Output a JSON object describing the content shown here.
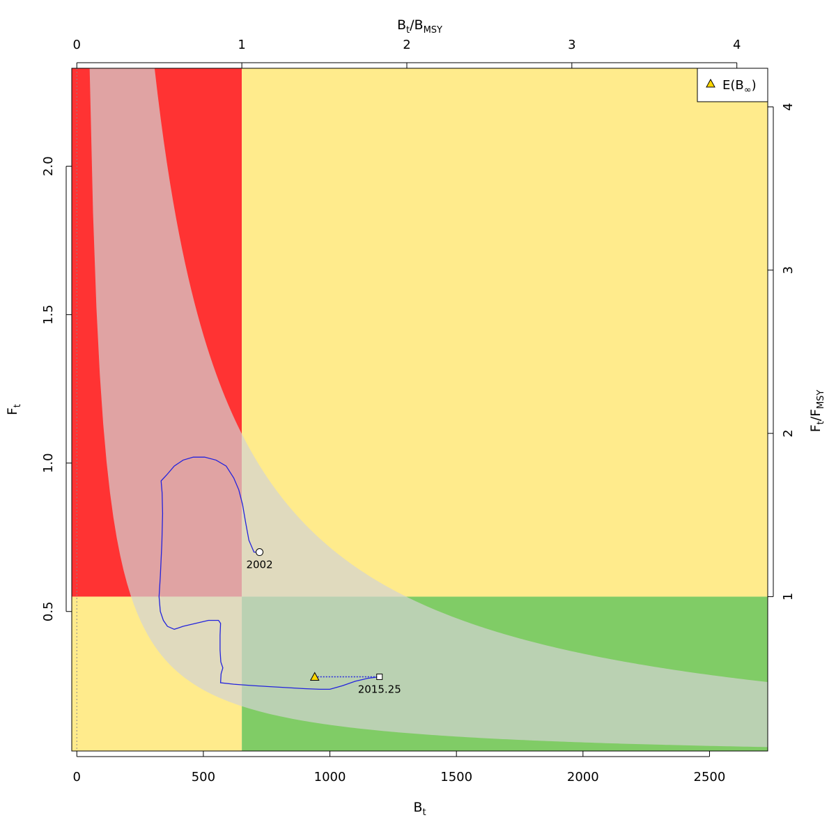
{
  "chart_data": {
    "type": "scatter",
    "title": "",
    "x_axis": {
      "label_main": "B",
      "label_sub": "t",
      "lim": [
        -20,
        2730
      ],
      "ticks": [
        0,
        500,
        1000,
        1500,
        2000,
        2500
      ],
      "tick_labels": [
        "0",
        "500",
        "1000",
        "1500",
        "2000",
        "2500"
      ]
    },
    "y_axis": {
      "label_main": "F",
      "label_sub": "t",
      "lim": [
        0.03,
        2.33
      ],
      "ticks": [
        0.5,
        1.0,
        1.5,
        2.0
      ],
      "tick_labels": [
        "0.5",
        "1.0",
        "1.5",
        "2.0"
      ]
    },
    "top_axis": {
      "label_main": "B",
      "label_sub": "t",
      "label_slash": "/",
      "label_main2": "B",
      "label_sub2": "MSY",
      "bmsy": 652,
      "ticks": [
        0,
        1,
        2,
        3,
        4
      ],
      "tick_labels": [
        "0",
        "1",
        "2",
        "3",
        "4"
      ]
    },
    "right_axis": {
      "label_main": "F",
      "label_sub": "t",
      "label_slash": "/",
      "label_main2": "F",
      "label_sub2": "MSY",
      "fmsy": 0.55,
      "ticks": [
        1,
        2,
        3,
        4
      ],
      "tick_labels": [
        "1",
        "2",
        "3",
        "4"
      ]
    },
    "reference": {
      "bmsy": 652,
      "fmsy": 0.55,
      "msy": 358,
      "msy_lower": 118,
      "msy_upper": 716
    },
    "zones": {
      "red": "#ff3333",
      "yellow": "#ffeb8c",
      "green": "#80cc66",
      "band": "#d3d3d3",
      "band_opacity": 0.7
    },
    "trajectory": {
      "color": "#2222dd",
      "points": [
        [
          722,
          0.7
        ],
        [
          700,
          0.7
        ],
        [
          680,
          0.74
        ],
        [
          667,
          0.8
        ],
        [
          655,
          0.86
        ],
        [
          640,
          0.91
        ],
        [
          620,
          0.95
        ],
        [
          590,
          0.99
        ],
        [
          550,
          1.01
        ],
        [
          505,
          1.02
        ],
        [
          460,
          1.02
        ],
        [
          420,
          1.01
        ],
        [
          385,
          0.99
        ],
        [
          355,
          0.96
        ],
        [
          333,
          0.94
        ],
        [
          337,
          0.9
        ],
        [
          339,
          0.83
        ],
        [
          336,
          0.73
        ],
        [
          330,
          0.62
        ],
        [
          325,
          0.55
        ],
        [
          330,
          0.5
        ],
        [
          342,
          0.47
        ],
        [
          358,
          0.45
        ],
        [
          385,
          0.44
        ],
        [
          420,
          0.45
        ],
        [
          470,
          0.46
        ],
        [
          520,
          0.47
        ],
        [
          560,
          0.47
        ],
        [
          568,
          0.46
        ],
        [
          566,
          0.42
        ],
        [
          566,
          0.37
        ],
        [
          569,
          0.33
        ],
        [
          577,
          0.31
        ],
        [
          570,
          0.29
        ],
        [
          568,
          0.26
        ],
        [
          620,
          0.255
        ],
        [
          700,
          0.25
        ],
        [
          800,
          0.245
        ],
        [
          900,
          0.24
        ],
        [
          960,
          0.238
        ],
        [
          1000,
          0.238
        ],
        [
          1050,
          0.25
        ],
        [
          1100,
          0.265
        ],
        [
          1150,
          0.275
        ],
        [
          1196,
          0.28
        ]
      ],
      "start": {
        "x": 722,
        "y": 0.7,
        "label": "2002"
      },
      "end": {
        "x": 1196,
        "y": 0.28,
        "label": "2015.25"
      }
    },
    "expected_equilibrium": {
      "x": 940,
      "y": 0.28,
      "color": "#ffd700"
    },
    "legend": {
      "position": "top-right",
      "text_main": "E(B",
      "text_sub": "∞",
      "text_close": ")"
    }
  }
}
